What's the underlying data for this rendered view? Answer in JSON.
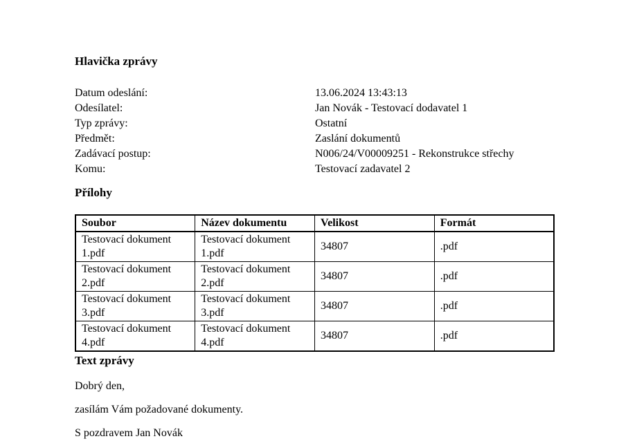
{
  "document": {
    "header_section": {
      "title": "Hlavička zprávy",
      "fields": [
        {
          "label": "Datum odeslání:",
          "value": "13.06.2024 13:43:13"
        },
        {
          "label": "Odesílatel:",
          "value": "Jan Novák - Testovací dodavatel 1"
        },
        {
          "label": "Typ zprávy:",
          "value": "Ostatní"
        },
        {
          "label": "Předmět:",
          "value": "Zaslání dokumentů"
        },
        {
          "label": "Zadávací postup:",
          "value": "N006/24/V00009251 - Rekonstrukce střechy"
        },
        {
          "label": "Komu:",
          "value": "Testovací zadavatel 2"
        }
      ]
    },
    "attachments_section": {
      "title": "Přílohy",
      "table": {
        "columns": [
          "Soubor",
          "Název dokumentu",
          "Velikost",
          "Formát"
        ],
        "rows": [
          [
            "Testovací dokument 1.pdf",
            "Testovací dokument 1.pdf",
            "34807",
            ".pdf"
          ],
          [
            "Testovací dokument 2.pdf",
            "Testovací dokument 2.pdf",
            "34807",
            ".pdf"
          ],
          [
            "Testovací dokument 3.pdf",
            "Testovací dokument 3.pdf",
            "34807",
            ".pdf"
          ],
          [
            "Testovací dokument 4.pdf",
            "Testovací dokument 4.pdf",
            "34807",
            ".pdf"
          ]
        ]
      }
    },
    "message_section": {
      "title": "Text zprávy",
      "paragraphs": [
        "Dobrý den,",
        "zasílám Vám požadované dokumenty.",
        "S pozdravem Jan Novák"
      ]
    }
  },
  "colors": {
    "text": "#000000",
    "background": "#ffffff",
    "table_border": "#000000"
  }
}
